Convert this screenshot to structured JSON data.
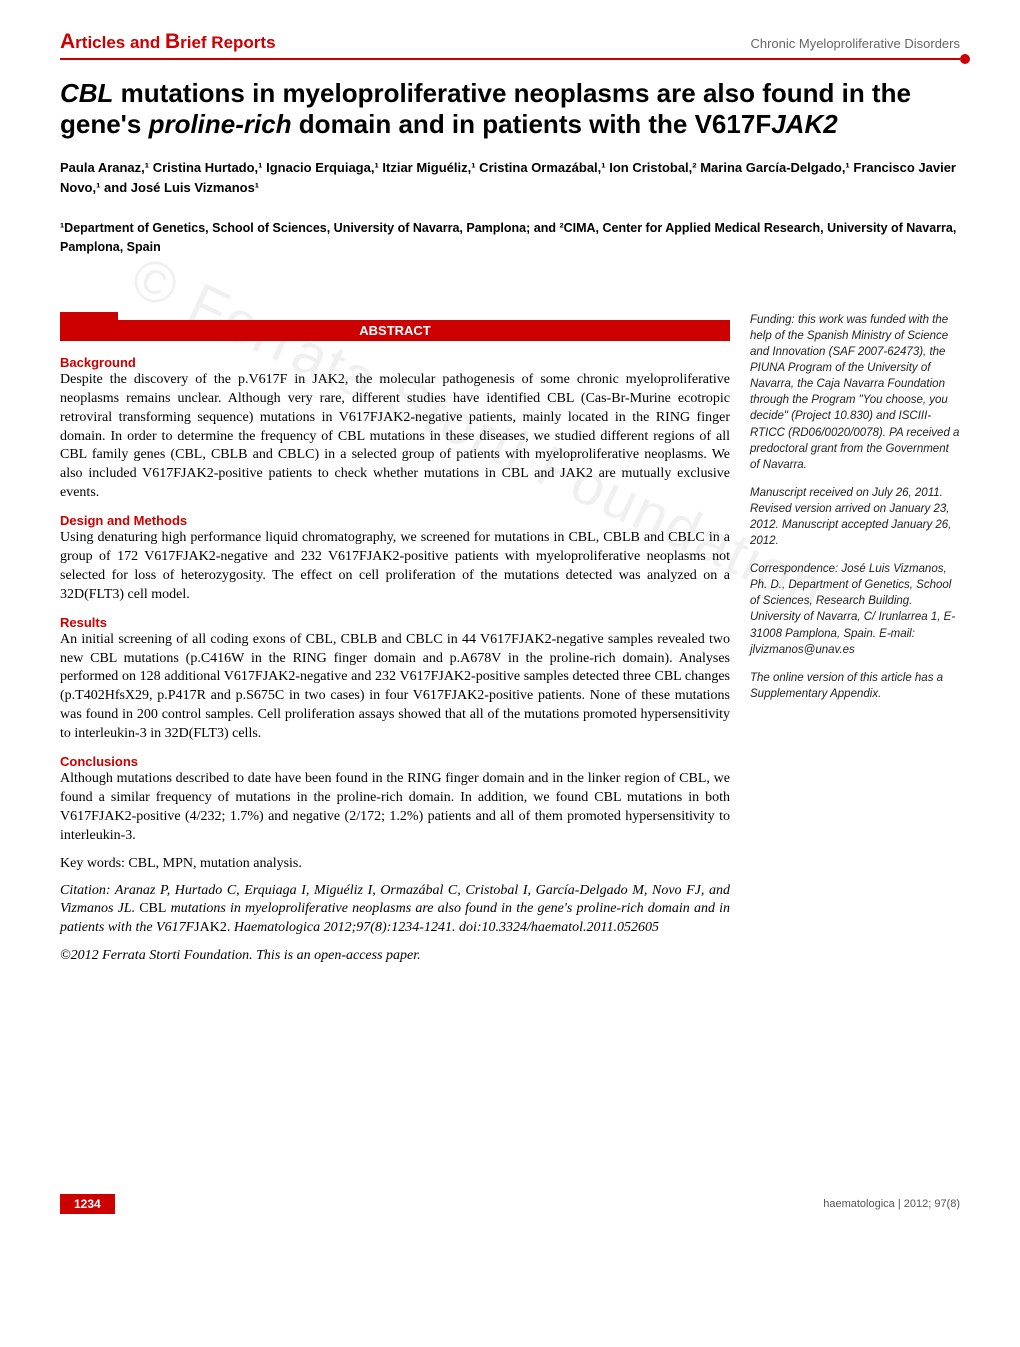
{
  "header": {
    "section_label_a": "A",
    "section_label_rest1": "rticles and ",
    "section_label_b": "B",
    "section_label_rest2": "rief Reports",
    "category": "Chronic Myeloproliferative Disorders"
  },
  "title": {
    "html": "<em>CBL</em> mutations in myeloproliferative neoplasms are also found in the gene's <em>proline-rich</em> domain and in patients with the V617F<em>JAK2</em>"
  },
  "authors": "Paula Aranaz,¹ Cristina Hurtado,¹ Ignacio Erquiaga,¹ Itziar Miguéliz,¹ Cristina Ormazábal,¹ Ion Cristobal,² Marina García-Delgado,¹ Francisco Javier Novo,¹ and José Luis Vizmanos¹",
  "affiliations": "¹Department of Genetics, School of Sciences, University of Navarra, Pamplona; and ²CIMA, Center for Applied Medical Research, University of Navarra, Pamplona, Spain",
  "abstract_label": "ABSTRACT",
  "sections": {
    "background": {
      "heading": "Background",
      "text": "Despite the discovery of the p.V617F in JAK2, the molecular pathogenesis of some chronic myeloproliferative neoplasms remains unclear. Although very rare, different studies have identified CBL (Cas-Br-Murine ecotropic retroviral transforming sequence) mutations in V617FJAK2-negative patients, mainly located in the RING finger domain. In order to determine the frequency of CBL mutations in these diseases, we studied different regions of all CBL family genes (CBL, CBLB and CBLC) in a selected group of patients with myeloproliferative neoplasms. We also included V617FJAK2-positive patients to check whether mutations in CBL and JAK2 are mutually exclusive events."
    },
    "design": {
      "heading": "Design and Methods",
      "text": "Using denaturing high performance liquid chromatography, we screened for mutations in CBL, CBLB and CBLC in a group of 172 V617FJAK2-negative and 232 V617FJAK2-positive patients with myeloproliferative neoplasms not selected for loss of heterozygosity. The effect on cell proliferation of the mutations detected was analyzed on a 32D(FLT3) cell model."
    },
    "results": {
      "heading": "Results",
      "text": "An initial screening of all coding exons of CBL, CBLB and CBLC in 44 V617FJAK2-negative samples revealed two new CBL mutations (p.C416W in the RING finger domain and p.A678V in the proline-rich domain). Analyses performed on 128 additional V617FJAK2-negative and 232 V617FJAK2-positive samples detected three CBL changes (p.T402HfsX29, p.P417R and p.S675C in two cases) in four V617FJAK2-positive patients. None of these mutations was found in 200 control samples. Cell proliferation assays showed that all of the mutations promoted hypersensitivity to interleukin-3 in 32D(FLT3) cells."
    },
    "conclusions": {
      "heading": "Conclusions",
      "text": "Although mutations described to date have been found in the RING finger domain and in the linker region of CBL, we found a similar frequency of mutations in the proline-rich domain. In addition, we found CBL mutations in both V617FJAK2-positive (4/232; 1.7%) and negative (2/172; 1.2%) patients and all of them promoted hypersensitivity to interleukin-3."
    }
  },
  "keywords": "Key words: CBL, MPN, mutation analysis.",
  "citation": {
    "authors": "Citation: Aranaz P, Hurtado C, Erquiaga I, Miguéliz I, Ormazábal C, Cristobal I, García-Delgado M, Novo FJ, and Vizmanos JL. ",
    "title_roman": "CBL",
    "rest": " mutations in myeloproliferative neoplasms are also found in the gene's proline-rich domain and in patients with the V617F",
    "jak": "JAK2. ",
    "journal": "Haematologica 2012;97(8):1234-1241. doi:10.3324/haematol.2011.052605"
  },
  "copyright": "©2012 Ferrata Storti Foundation. This is an open-access paper.",
  "sidebar": {
    "funding": "Funding: this work was funded with the help of the Spanish Ministry of Science and Innovation (SAF 2007-62473), the PIUNA Program of the University of Navarra, the Caja Navarra Foundation through the Program \"You choose, you decide\" (Project 10.830) and ISCIII-RTICC (RD06/0020/0078). PA received a predoctoral grant from the Government of Navarra.",
    "manuscript": "Manuscript received on July 26, 2011. Revised version arrived on January 23, 2012. Manuscript accepted January 26, 2012.",
    "correspondence": "Correspondence: José Luis Vizmanos, Ph. D., Department of Genetics, School of Sciences, Research Building. University of Navarra, C/ Irunlarrea 1, E-31008 Pamplona, Spain. E-mail: jlvizmanos@unav.es",
    "online": "The online version of this article has a Supplementary Appendix."
  },
  "watermark": "© Ferrata Storti Foundation",
  "footer": {
    "page": "1234",
    "journal": "haematologica | 2012; 97(8)"
  },
  "colors": {
    "brand_red": "#c00",
    "text": "#000",
    "muted": "#666"
  }
}
